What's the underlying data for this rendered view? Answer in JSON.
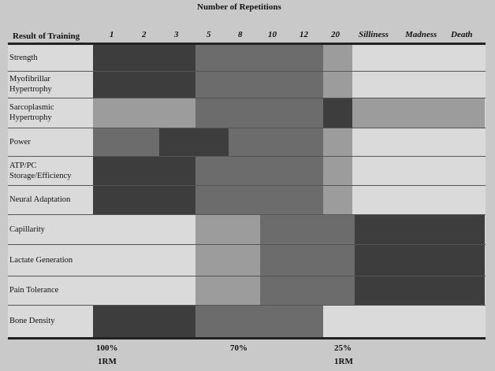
{
  "header": {
    "title": "Number of Repetitions",
    "row_header": "Result of Training",
    "columns": [
      "1",
      "2",
      "3",
      "5",
      "8",
      "10",
      "12",
      "20",
      "Silliness",
      "Madness",
      "Death"
    ]
  },
  "table": {
    "rows": [
      "Strength",
      "Myofibrillar Hypertrophy",
      "Sarcoplasmic Hypertrophy",
      "Power",
      "ATP/PC Storage/Efficiency",
      "Neural Adaptation",
      "Capillarity",
      "Lactate Generation",
      "Pain Tolerance",
      "Bone Density"
    ]
  },
  "footer": [
    {
      "percent": "100%",
      "unit": "1RM"
    },
    {
      "percent": "70%"
    },
    {
      "percent": "25%",
      "unit": "1RM"
    }
  ]
}
